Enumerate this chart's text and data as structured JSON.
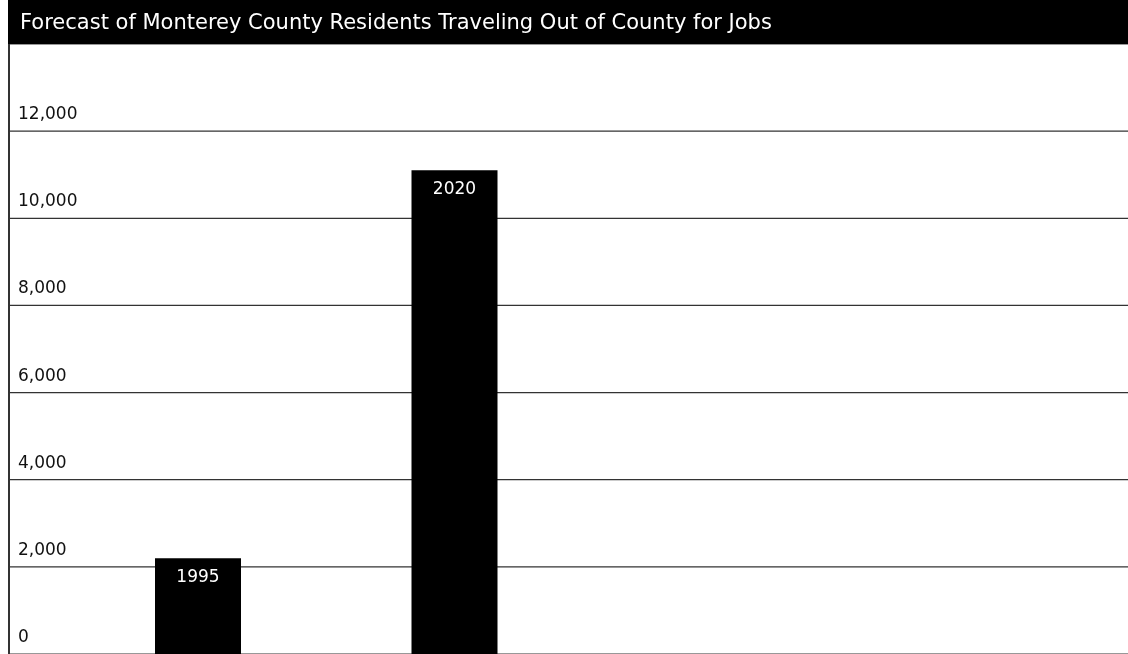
{
  "chart_data": {
    "type": "bar",
    "title": "Forecast of Monterey County Residents Traveling Out of County for Jobs",
    "categories": [
      "1995",
      "2020"
    ],
    "values": [
      2200,
      11100
    ],
    "color": "#000000",
    "ylim": [
      0,
      14000
    ],
    "yticks": [
      0,
      {
        "value": 2000,
        "label": "2,000"
      },
      {
        "value": 4000,
        "label": "4,000"
      },
      {
        "value": 6000,
        "label": "6,000"
      },
      {
        "value": 8000,
        "label": "8,000"
      },
      {
        "value": 10000,
        "label": "10,000"
      },
      {
        "value": 12000,
        "label": "12,000"
      }
    ],
    "grid": "y"
  }
}
